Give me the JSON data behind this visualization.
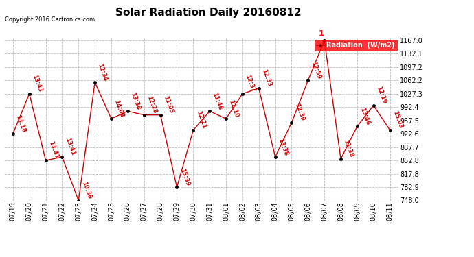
{
  "title": "Solar Radiation Daily 20160812",
  "copyright": "Copyright 2016 Cartronics.com",
  "legend_label": "Radiation  (W/m2)",
  "y_ticks": [
    748.0,
    782.9,
    817.8,
    852.8,
    887.7,
    922.6,
    957.5,
    992.4,
    1027.3,
    1062.2,
    1097.2,
    1132.1,
    1167.0
  ],
  "ylim": [
    748.0,
    1167.0
  ],
  "x_labels": [
    "07/19",
    "07/20",
    "07/21",
    "07/22",
    "07/23",
    "07/24",
    "07/25",
    "07/26",
    "07/27",
    "07/28",
    "07/29",
    "07/30",
    "07/31",
    "08/01",
    "08/02",
    "08/03",
    "08/04",
    "08/05",
    "08/06",
    "08/07",
    "08/08",
    "08/09",
    "08/10",
    "08/11"
  ],
  "y_values": [
    922.6,
    1027.3,
    852.8,
    862.0,
    748.0,
    1057.0,
    962.0,
    982.0,
    972.0,
    972.0,
    782.9,
    932.0,
    982.0,
    962.0,
    1027.3,
    1042.0,
    862.0,
    952.0,
    1062.2,
    1167.0,
    857.0,
    942.0,
    997.0,
    932.0
  ],
  "time_labels": [
    "13:18",
    "13:43",
    "13:41",
    "13:41",
    "10:38",
    "12:34",
    "14:08",
    "13:38",
    "12:28",
    "11:05",
    "15:39",
    "12:21",
    "11:48",
    "12:10",
    "12:37",
    "12:33",
    "13:38",
    "12:39",
    "12:59",
    "1",
    "11:38",
    "13:46",
    "12:19",
    "15:03"
  ],
  "line_color": "#cc0000",
  "marker_color": "#000000",
  "bg_color": "#ffffff",
  "grid_color": "#bbbbbb",
  "title_fontsize": 11,
  "tick_fontsize": 7,
  "annot_fontsize": 6,
  "copyright_fontsize": 6
}
